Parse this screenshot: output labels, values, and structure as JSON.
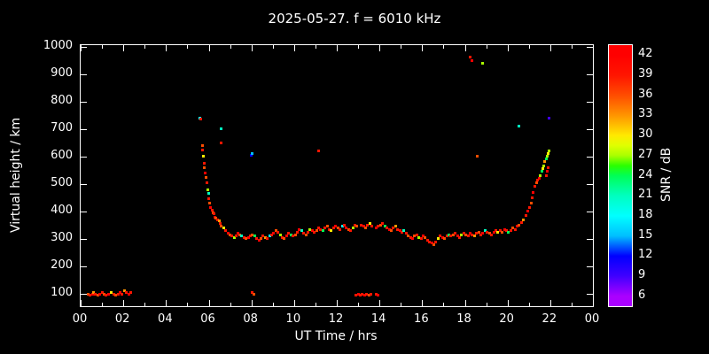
{
  "title": "2025-05-27. f = 6010 kHz",
  "chart_data": {
    "type": "scatter",
    "title": "2025-05-27. f = 6010 kHz",
    "xlabel": "UT Time / hrs",
    "ylabel": "Virtual height / km",
    "colorbar_label": "SNR / dB",
    "x_range": [
      0,
      24
    ],
    "y_range": [
      55,
      1005
    ],
    "x_ticks": {
      "values": [
        0,
        2,
        4,
        6,
        8,
        10,
        12,
        14,
        16,
        18,
        20,
        22,
        24
      ],
      "labels": [
        "00",
        "02",
        "04",
        "06",
        "08",
        "10",
        "12",
        "14",
        "16",
        "18",
        "20",
        "22",
        "00"
      ]
    },
    "y_ticks": [
      100,
      200,
      300,
      400,
      500,
      600,
      700,
      800,
      900,
      1000
    ],
    "background_color": "#000000",
    "axis_color": "#ffffff",
    "colorbar": {
      "min": 4.5,
      "max": 43.5,
      "ticks": [
        6,
        9,
        12,
        15,
        18,
        21,
        24,
        27,
        30,
        33,
        36,
        39,
        42
      ],
      "hue_anchors": [
        [
          6,
          280
        ],
        [
          9,
          255
        ],
        [
          12,
          240
        ],
        [
          15,
          195
        ],
        [
          18,
          180
        ],
        [
          21,
          165
        ],
        [
          24,
          140
        ],
        [
          27,
          80
        ],
        [
          30,
          55
        ],
        [
          33,
          35
        ],
        [
          36,
          18
        ],
        [
          39,
          5
        ],
        [
          42,
          0
        ]
      ]
    },
    "points": [
      [
        0.35,
        100,
        36
      ],
      [
        0.45,
        95,
        39
      ],
      [
        0.55,
        100,
        42
      ],
      [
        0.6,
        105,
        33
      ],
      [
        0.7,
        100,
        39
      ],
      [
        0.8,
        95,
        36
      ],
      [
        0.9,
        100,
        42
      ],
      [
        1.0,
        105,
        39
      ],
      [
        1.1,
        100,
        36
      ],
      [
        1.2,
        95,
        39
      ],
      [
        1.3,
        100,
        42
      ],
      [
        1.45,
        105,
        30
      ],
      [
        1.55,
        100,
        39
      ],
      [
        1.65,
        95,
        36
      ],
      [
        1.75,
        100,
        39
      ],
      [
        1.85,
        105,
        42
      ],
      [
        1.95,
        100,
        39
      ],
      [
        2.05,
        110,
        33
      ],
      [
        2.15,
        105,
        39
      ],
      [
        2.25,
        100,
        42
      ],
      [
        2.35,
        105,
        39
      ],
      [
        5.6,
        740,
        18
      ],
      [
        5.62,
        735,
        39
      ],
      [
        5.7,
        640,
        36
      ],
      [
        5.72,
        625,
        39
      ],
      [
        5.75,
        600,
        30
      ],
      [
        5.78,
        575,
        39
      ],
      [
        5.8,
        560,
        36
      ],
      [
        5.85,
        540,
        42
      ],
      [
        5.88,
        525,
        36
      ],
      [
        5.9,
        505,
        39
      ],
      [
        5.95,
        480,
        27
      ],
      [
        6.0,
        465,
        21
      ],
      [
        6.0,
        445,
        39
      ],
      [
        6.05,
        430,
        36
      ],
      [
        6.1,
        415,
        42
      ],
      [
        6.15,
        405,
        39
      ],
      [
        6.2,
        395,
        36
      ],
      [
        6.25,
        390,
        39
      ],
      [
        6.3,
        380,
        42
      ],
      [
        6.35,
        375,
        36
      ],
      [
        6.4,
        370,
        39
      ],
      [
        6.5,
        365,
        33
      ],
      [
        6.55,
        355,
        39
      ],
      [
        6.6,
        700,
        21
      ],
      [
        6.6,
        650,
        39
      ],
      [
        6.6,
        345,
        36
      ],
      [
        6.7,
        340,
        30
      ],
      [
        6.8,
        330,
        39
      ],
      [
        6.9,
        320,
        42
      ],
      [
        7.0,
        315,
        36
      ],
      [
        7.1,
        310,
        39
      ],
      [
        7.2,
        305,
        27
      ],
      [
        7.3,
        310,
        39
      ],
      [
        7.35,
        320,
        42
      ],
      [
        7.45,
        315,
        36
      ],
      [
        7.55,
        310,
        21
      ],
      [
        7.65,
        305,
        39
      ],
      [
        7.75,
        300,
        36
      ],
      [
        7.85,
        305,
        42
      ],
      [
        7.95,
        310,
        39
      ],
      [
        8.0,
        605,
        12
      ],
      [
        8.05,
        610,
        15
      ],
      [
        8.05,
        105,
        39
      ],
      [
        8.12,
        100,
        36
      ],
      [
        8.05,
        315,
        36
      ],
      [
        8.15,
        310,
        24
      ],
      [
        8.25,
        300,
        39
      ],
      [
        8.35,
        295,
        42
      ],
      [
        8.45,
        300,
        36
      ],
      [
        8.55,
        310,
        39
      ],
      [
        8.65,
        305,
        33
      ],
      [
        8.75,
        300,
        39
      ],
      [
        8.85,
        310,
        18
      ],
      [
        8.95,
        315,
        39
      ],
      [
        9.05,
        320,
        42
      ],
      [
        9.15,
        330,
        36
      ],
      [
        9.25,
        325,
        39
      ],
      [
        9.35,
        315,
        27
      ],
      [
        9.45,
        305,
        39
      ],
      [
        9.55,
        300,
        36
      ],
      [
        9.65,
        310,
        42
      ],
      [
        9.75,
        320,
        39
      ],
      [
        9.85,
        315,
        24
      ],
      [
        9.95,
        310,
        39
      ],
      [
        10.05,
        315,
        36
      ],
      [
        10.15,
        325,
        39
      ],
      [
        10.25,
        335,
        42
      ],
      [
        10.35,
        330,
        21
      ],
      [
        10.45,
        320,
        39
      ],
      [
        10.55,
        315,
        36
      ],
      [
        10.65,
        325,
        39
      ],
      [
        10.75,
        335,
        27
      ],
      [
        10.85,
        330,
        42
      ],
      [
        10.95,
        325,
        39
      ],
      [
        11.05,
        330,
        36
      ],
      [
        11.15,
        620,
        39
      ],
      [
        11.15,
        340,
        39
      ],
      [
        11.25,
        335,
        42
      ],
      [
        11.35,
        330,
        24
      ],
      [
        11.45,
        340,
        39
      ],
      [
        11.55,
        345,
        36
      ],
      [
        11.65,
        335,
        39
      ],
      [
        11.75,
        330,
        30
      ],
      [
        11.85,
        340,
        39
      ],
      [
        11.95,
        345,
        42
      ],
      [
        12.05,
        340,
        36
      ],
      [
        12.15,
        335,
        39
      ],
      [
        12.25,
        345,
        18
      ],
      [
        12.35,
        350,
        39
      ],
      [
        12.45,
        340,
        42
      ],
      [
        12.55,
        335,
        36
      ],
      [
        12.65,
        330,
        39
      ],
      [
        12.75,
        340,
        27
      ],
      [
        12.85,
        350,
        39
      ],
      [
        12.95,
        345,
        36
      ],
      [
        12.9,
        95,
        39
      ],
      [
        13.0,
        100,
        42
      ],
      [
        13.1,
        95,
        39
      ],
      [
        13.2,
        100,
        39
      ],
      [
        13.3,
        95,
        42
      ],
      [
        13.4,
        100,
        39
      ],
      [
        13.5,
        95,
        36
      ],
      [
        13.6,
        100,
        39
      ],
      [
        13.85,
        100,
        39
      ],
      [
        13.95,
        95,
        42
      ],
      [
        13.15,
        350,
        39
      ],
      [
        13.25,
        345,
        42
      ],
      [
        13.35,
        340,
        36
      ],
      [
        13.45,
        350,
        39
      ],
      [
        13.55,
        355,
        30
      ],
      [
        13.65,
        345,
        39
      ],
      [
        13.85,
        340,
        42
      ],
      [
        13.95,
        345,
        39
      ],
      [
        14.05,
        350,
        36
      ],
      [
        14.15,
        355,
        39
      ],
      [
        14.25,
        345,
        24
      ],
      [
        14.35,
        340,
        39
      ],
      [
        14.45,
        335,
        42
      ],
      [
        14.55,
        330,
        36
      ],
      [
        14.65,
        340,
        39
      ],
      [
        14.75,
        345,
        33
      ],
      [
        14.85,
        335,
        39
      ],
      [
        14.95,
        330,
        42
      ],
      [
        15.05,
        325,
        39
      ],
      [
        15.15,
        330,
        21
      ],
      [
        15.25,
        320,
        39
      ],
      [
        15.35,
        310,
        36
      ],
      [
        15.45,
        305,
        39
      ],
      [
        15.55,
        300,
        42
      ],
      [
        15.65,
        310,
        36
      ],
      [
        15.75,
        315,
        39
      ],
      [
        15.85,
        305,
        27
      ],
      [
        15.95,
        300,
        39
      ],
      [
        16.05,
        310,
        42
      ],
      [
        16.15,
        305,
        36
      ],
      [
        16.25,
        295,
        39
      ],
      [
        16.35,
        290,
        39
      ],
      [
        16.45,
        285,
        42
      ],
      [
        16.55,
        280,
        36
      ],
      [
        16.65,
        290,
        39
      ],
      [
        16.75,
        300,
        30
      ],
      [
        16.85,
        310,
        39
      ],
      [
        16.95,
        305,
        42
      ],
      [
        17.05,
        300,
        36
      ],
      [
        17.15,
        310,
        39
      ],
      [
        17.25,
        315,
        24
      ],
      [
        17.35,
        310,
        39
      ],
      [
        17.45,
        315,
        36
      ],
      [
        17.55,
        320,
        39
      ],
      [
        17.65,
        310,
        42
      ],
      [
        17.75,
        305,
        39
      ],
      [
        17.85,
        315,
        27
      ],
      [
        17.95,
        320,
        39
      ],
      [
        18.05,
        315,
        36
      ],
      [
        18.15,
        310,
        39
      ],
      [
        18.25,
        320,
        42
      ],
      [
        18.35,
        315,
        39
      ],
      [
        18.45,
        310,
        33
      ],
      [
        18.25,
        960,
        39
      ],
      [
        18.32,
        950,
        42
      ],
      [
        18.85,
        940,
        27
      ],
      [
        18.6,
        600,
        36
      ],
      [
        18.55,
        320,
        39
      ],
      [
        18.65,
        325,
        36
      ],
      [
        18.75,
        315,
        39
      ],
      [
        18.85,
        320,
        42
      ],
      [
        18.95,
        330,
        21
      ],
      [
        19.05,
        325,
        39
      ],
      [
        19.15,
        320,
        36
      ],
      [
        19.25,
        315,
        39
      ],
      [
        19.35,
        325,
        42
      ],
      [
        19.45,
        330,
        39
      ],
      [
        19.55,
        325,
        30
      ],
      [
        19.65,
        330,
        39
      ],
      [
        19.75,
        325,
        36
      ],
      [
        19.85,
        335,
        42
      ],
      [
        19.95,
        330,
        39
      ],
      [
        20.05,
        325,
        24
      ],
      [
        20.15,
        330,
        39
      ],
      [
        20.25,
        340,
        36
      ],
      [
        20.35,
        335,
        39
      ],
      [
        20.45,
        345,
        42
      ],
      [
        20.55,
        350,
        36
      ],
      [
        20.65,
        360,
        39
      ],
      [
        20.75,
        370,
        33
      ],
      [
        20.85,
        385,
        39
      ],
      [
        20.95,
        400,
        42
      ],
      [
        21.05,
        415,
        39
      ],
      [
        21.1,
        430,
        36
      ],
      [
        21.15,
        450,
        39
      ],
      [
        21.2,
        470,
        42
      ],
      [
        21.3,
        490,
        39
      ],
      [
        21.35,
        505,
        36
      ],
      [
        21.4,
        515,
        39
      ],
      [
        20.55,
        710,
        21
      ],
      [
        21.5,
        520,
        42
      ],
      [
        21.55,
        530,
        27
      ],
      [
        21.6,
        545,
        24
      ],
      [
        21.65,
        555,
        30
      ],
      [
        21.7,
        565,
        27
      ],
      [
        21.75,
        580,
        33
      ],
      [
        21.8,
        590,
        24
      ],
      [
        21.85,
        600,
        27
      ],
      [
        21.9,
        610,
        30
      ],
      [
        21.95,
        620,
        27
      ],
      [
        21.9,
        560,
        39
      ],
      [
        21.85,
        545,
        42
      ],
      [
        21.8,
        530,
        39
      ],
      [
        21.95,
        740,
        9
      ]
    ]
  }
}
